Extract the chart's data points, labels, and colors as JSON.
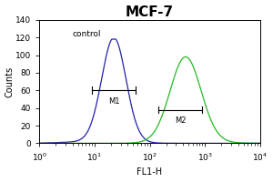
{
  "title": "MCF-7",
  "xlabel": "FL1-H",
  "ylabel": "Counts",
  "title_fontsize": 11,
  "label_fontsize": 7,
  "tick_fontsize": 6.5,
  "bg_color": "#ffffff",
  "plot_bg_color": "#ffffff",
  "control_color": "#2222aa",
  "sample_color": "#22bb22",
  "ylim": [
    0,
    140
  ],
  "yticks": [
    0,
    20,
    40,
    60,
    80,
    100,
    120,
    140
  ],
  "control_peak_log": 1.35,
  "control_peak_height": 118,
  "control_peak_std_log": 0.22,
  "sample_peak_log": 2.65,
  "sample_peak_height": 98,
  "sample_peak_std_log": 0.28,
  "m1_label": "M1",
  "m2_label": "M2",
  "control_label": "control",
  "m1_x_left_log": 0.95,
  "m1_x_right_log": 1.75,
  "m1_y": 60,
  "m2_x_left_log": 2.15,
  "m2_x_right_log": 2.95,
  "m2_y": 38,
  "n_points": 300,
  "x_log_min": 0,
  "x_log_max": 4
}
